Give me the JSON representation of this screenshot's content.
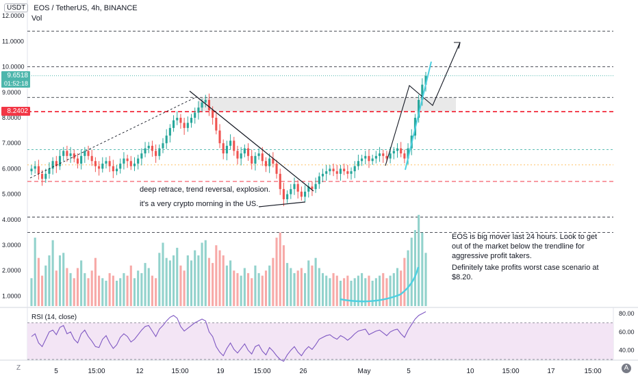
{
  "header": {
    "quote_currency": "USDT",
    "symbol_title": "EOS / TetherUS, 4h, BINANCE",
    "volume_label": "Vol",
    "rsi_label": "RSI (14, close)"
  },
  "price_tags": {
    "last_price": "9.6518",
    "countdown": "01:52:18",
    "marked_level": "8.2402"
  },
  "annotations": {
    "pattern_note_1": "deep retrace, trend reversal, explosion.",
    "pattern_note_2": "it's a very crypto morning in the US.",
    "advice_1": "EOS is big mover last 24 hours. Look to get",
    "advice_2": "out of the market below the trendline for",
    "advice_3": "aggressive profit takers.",
    "advice_4": "Definitely take profits worst case scenario at",
    "advice_5": "$8.20."
  },
  "toolbar": {
    "zoom_label": "Z",
    "auto_label": "A"
  },
  "colors": {
    "up": "#26a69a",
    "down": "#ef5350",
    "vol_up": "#92d2cc",
    "vol_down": "#f7a9a7",
    "rsi_line": "#7e57c2",
    "rsi_band": "#f3e5f5",
    "resistance_red": "#f23645",
    "last_price": "#4db6ac"
  },
  "chart_data": {
    "type": "candlestick",
    "title": "EOS / TetherUS, 4h, BINANCE",
    "price_axis_ticks": [
      "12.0000",
      "11.0000",
      "10.0000",
      "9.0000",
      "8.0000",
      "7.0000",
      "6.0000",
      "5.0000",
      "4.0000",
      "3.0000",
      "2.0000",
      "1.0000"
    ],
    "price_ylim": [
      0.6,
      12.2
    ],
    "volume_axis_ticks": [],
    "rsi_axis_ticks": [
      "80.00",
      "60.00",
      "40.00"
    ],
    "rsi_ylim": [
      30,
      85
    ],
    "rsi_bands": [
      70,
      30
    ],
    "x_tick_labels": [
      "5",
      "15:00",
      "12",
      "15:00",
      "19",
      "15:00",
      "26",
      "May",
      "5",
      "10",
      "15:00",
      "17",
      "15:00"
    ],
    "levels": {
      "red_dashed": [
        8.24,
        5.5
      ],
      "black_dashed": [
        11.4,
        10.0,
        8.8,
        4.1,
        3.5
      ],
      "green_dashed": [
        6.75
      ],
      "orange_dashed": [
        6.15
      ],
      "teal_last": [
        9.65
      ]
    },
    "resistance_zone": [
      8.25,
      8.8
    ],
    "close_series": [
      6.0,
      6.1,
      5.8,
      5.6,
      5.8,
      6.0,
      6.3,
      6.1,
      6.5,
      6.7,
      6.5,
      6.6,
      6.4,
      6.2,
      6.5,
      6.7,
      6.5,
      6.3,
      6.1,
      6.0,
      6.2,
      6.3,
      6.1,
      5.9,
      6.0,
      6.2,
      6.4,
      6.3,
      6.1,
      6.2,
      6.4,
      6.6,
      6.8,
      6.9,
      6.7,
      6.5,
      6.8,
      7.0,
      7.3,
      7.6,
      7.9,
      8.0,
      7.8,
      7.6,
      7.8,
      8.0,
      8.2,
      8.4,
      8.6,
      8.7,
      8.3,
      8.0,
      7.5,
      7.0,
      6.6,
      6.9,
      7.1,
      6.7,
      6.4,
      6.6,
      6.8,
      6.5,
      6.2,
      6.5,
      6.6,
      6.3,
      6.1,
      6.4,
      6.2,
      5.8,
      5.2,
      4.8,
      5.0,
      5.2,
      5.4,
      5.1,
      4.9,
      5.1,
      5.3,
      5.2,
      5.4,
      5.7,
      5.8,
      5.9,
      6.0,
      5.9,
      5.8,
      6.0,
      5.9,
      5.8,
      5.9,
      6.1,
      6.3,
      6.4,
      6.5,
      6.3,
      6.4,
      6.5,
      6.6,
      6.5,
      6.4,
      6.6,
      6.7,
      6.8,
      6.6,
      6.4,
      6.8,
      7.3,
      8.0,
      8.7,
      9.3,
      9.65
    ],
    "rsi_series": [
      55,
      58,
      48,
      44,
      52,
      60,
      62,
      57,
      65,
      67,
      58,
      60,
      52,
      48,
      58,
      62,
      55,
      50,
      44,
      43,
      52,
      56,
      48,
      42,
      46,
      54,
      58,
      55,
      49,
      52,
      57,
      62,
      66,
      67,
      61,
      55,
      63,
      67,
      72,
      76,
      78,
      75,
      66,
      61,
      64,
      67,
      70,
      72,
      74,
      72,
      60,
      55,
      44,
      38,
      34,
      42,
      48,
      41,
      37,
      42,
      47,
      40,
      36,
      44,
      46,
      39,
      35,
      43,
      39,
      34,
      30,
      28,
      35,
      40,
      44,
      38,
      34,
      40,
      44,
      41,
      46,
      52,
      54,
      56,
      57,
      54,
      52,
      56,
      54,
      51,
      54,
      58,
      61,
      62,
      63,
      57,
      59,
      61,
      62,
      59,
      56,
      60,
      62,
      63,
      58,
      54,
      62,
      68,
      74,
      78,
      80,
      82
    ],
    "volume_series_millions": [
      1.1,
      2.7,
      1.9,
      1.2,
      1.6,
      2.0,
      2.6,
      1.4,
      2.0,
      2.1,
      1.5,
      1.3,
      1.1,
      1.5,
      1.8,
      1.3,
      1.1,
      1.4,
      1.9,
      1.2,
      1.1,
      1.0,
      1.3,
      1.2,
      1.0,
      1.1,
      1.3,
      1.2,
      1.6,
      1.1,
      1.4,
      1.3,
      1.7,
      1.5,
      1.2,
      1.1,
      2.1,
      2.5,
      1.9,
      1.8,
      2.0,
      2.3,
      1.6,
      1.4,
      2.0,
      1.8,
      2.2,
      2.0,
      2.5,
      2.6,
      1.9,
      1.7,
      2.4,
      2.2,
      2.0,
      1.6,
      1.8,
      1.4,
      1.3,
      1.2,
      1.5,
      1.3,
      1.1,
      1.6,
      1.3,
      1.2,
      1.4,
      1.6,
      1.9,
      2.7,
      2.9,
      2.4,
      1.7,
      1.5,
      1.3,
      1.4,
      1.5,
      1.3,
      1.8,
      1.6,
      1.9,
      1.5,
      1.3,
      1.2,
      1.1,
      1.3,
      1.2,
      1.0,
      1.1,
      1.2,
      1.0,
      1.1,
      1.2,
      1.3,
      1.1,
      1.2,
      1.0,
      1.1,
      1.2,
      1.3,
      1.1,
      1.2,
      1.3,
      1.5,
      1.4,
      1.9,
      2.2,
      2.7,
      3.0,
      3.6,
      2.9,
      2.1
    ]
  }
}
